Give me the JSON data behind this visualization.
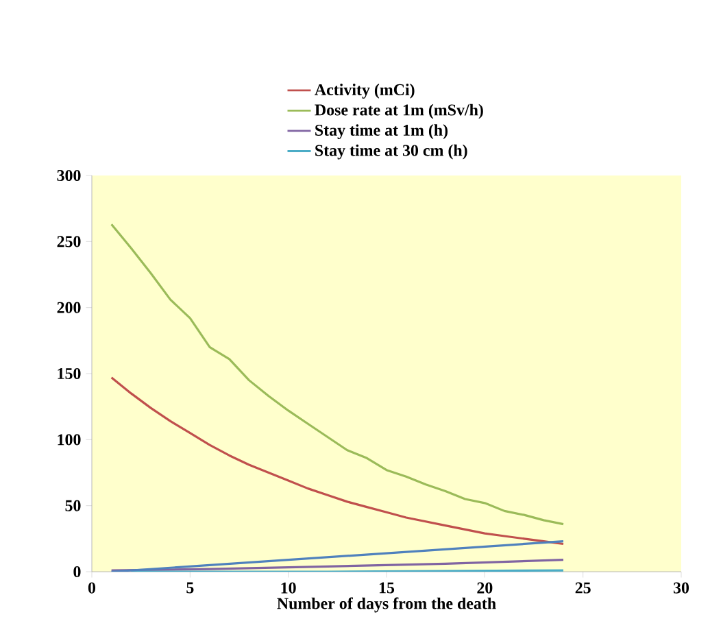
{
  "chart_data": {
    "type": "line",
    "xlabel": "Number of days from the death",
    "xlim": [
      0,
      30
    ],
    "xticks": [
      0,
      5,
      10,
      15,
      20,
      25,
      30
    ],
    "ylim": [
      0,
      300
    ],
    "yticks": [
      0,
      50,
      100,
      150,
      200,
      250,
      300
    ],
    "legend": "top",
    "series": [
      {
        "name": "Activity (mCi)",
        "color": "#c0504d",
        "x": [
          1,
          2,
          3,
          4,
          5,
          6,
          7,
          8,
          9,
          10,
          11,
          12,
          13,
          14,
          15,
          16,
          17,
          18,
          19,
          20,
          21,
          22,
          23,
          24
        ],
        "values": [
          147,
          135,
          124,
          114,
          105,
          96,
          88,
          81,
          75,
          69,
          63,
          58,
          53,
          49,
          45,
          41,
          38,
          35,
          32,
          29,
          27,
          25,
          23,
          21
        ]
      },
      {
        "name": "Dose rate at 1m (mSv/h)",
        "color": "#9bbb59",
        "x": [
          1,
          2,
          3,
          4,
          5,
          6,
          7,
          8,
          9,
          10,
          11,
          12,
          13,
          14,
          15,
          16,
          17,
          18,
          19,
          20,
          21,
          22,
          23,
          24
        ],
        "values": [
          263,
          245,
          226,
          206,
          192,
          170,
          161,
          145,
          133,
          122,
          112,
          102,
          92,
          86,
          77,
          72,
          66,
          61,
          55,
          52,
          46,
          43,
          39,
          36
        ]
      },
      {
        "name": "Stay time at 1m (h)",
        "color": "#8064a2",
        "x": [
          1,
          6,
          12,
          18,
          24
        ],
        "values": [
          1,
          2,
          4,
          6,
          9
        ]
      },
      {
        "name": "Stay time at 30 cm (h)",
        "color": "#4bacc6",
        "x": [
          2,
          12,
          24
        ],
        "values": [
          0,
          0,
          1
        ]
      },
      {
        "color": "#4f81bd",
        "x": [
          1,
          24
        ],
        "values": [
          0,
          23
        ]
      }
    ]
  }
}
